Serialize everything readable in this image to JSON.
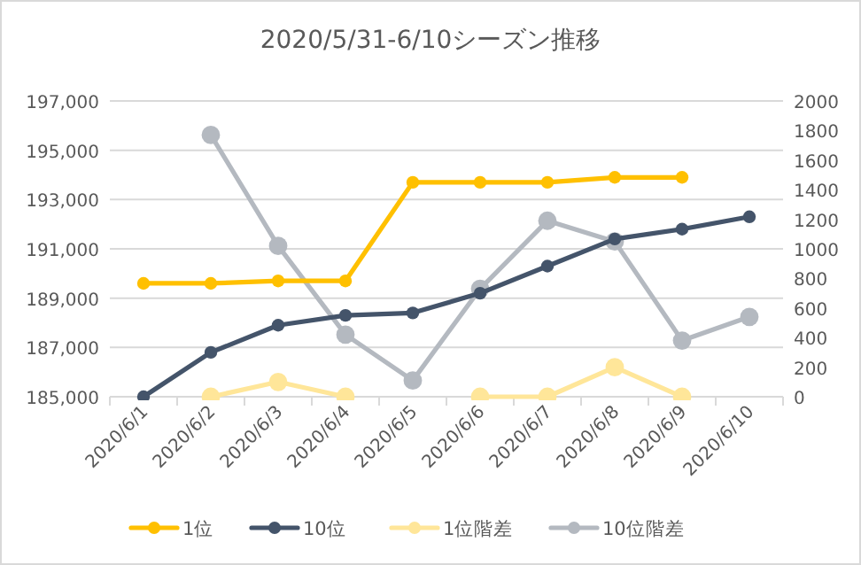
{
  "chart_data": {
    "type": "line",
    "title": "2020/5/31-6/10シーズン推移",
    "categories": [
      "2020/6/1",
      "2020/6/2",
      "2020/6/3",
      "2020/6/4",
      "2020/6/5",
      "2020/6/6",
      "2020/6/7",
      "2020/6/8",
      "2020/6/9",
      "2020/6/10"
    ],
    "series": [
      {
        "name": "1位",
        "color": "#ffc000",
        "values": [
          189600,
          189600,
          189700,
          189700,
          193700,
          193700,
          193700,
          193900,
          193900,
          null
        ]
      },
      {
        "name": "10位",
        "color": "#44546a",
        "values": [
          185000,
          186800,
          187900,
          188300,
          188400,
          189200,
          190300,
          191400,
          191800,
          192300
        ]
      },
      {
        "name": "1位階差",
        "color": "#ffe699",
        "axis": "y2",
        "values": [
          null,
          0,
          100,
          0,
          null,
          0,
          0,
          200,
          0,
          null
        ]
      },
      {
        "name": "10位階差",
        "color": "#b4b9c0",
        "axis": "y2",
        "values": [
          null,
          1770,
          1020,
          420,
          110,
          730,
          1190,
          1050,
          380,
          540
        ]
      }
    ],
    "ylim": [
      185000,
      197000
    ],
    "yticks": [
      {
        "value": 185000,
        "label": "185,000"
      },
      {
        "value": 187000,
        "label": "187,000"
      },
      {
        "value": 189000,
        "label": "189,000"
      },
      {
        "value": 191000,
        "label": "191,000"
      },
      {
        "value": 193000,
        "label": "193,000"
      },
      {
        "value": 195000,
        "label": "195,000"
      },
      {
        "value": 197000,
        "label": "197,000"
      }
    ],
    "y2lim": [
      0,
      2000
    ],
    "y2ticks": [
      0,
      200,
      400,
      600,
      800,
      1000,
      1200,
      1400,
      1600,
      1800,
      2000
    ],
    "grid": "y",
    "legend": "bottom",
    "marker": "circle",
    "line_style": "solid"
  }
}
